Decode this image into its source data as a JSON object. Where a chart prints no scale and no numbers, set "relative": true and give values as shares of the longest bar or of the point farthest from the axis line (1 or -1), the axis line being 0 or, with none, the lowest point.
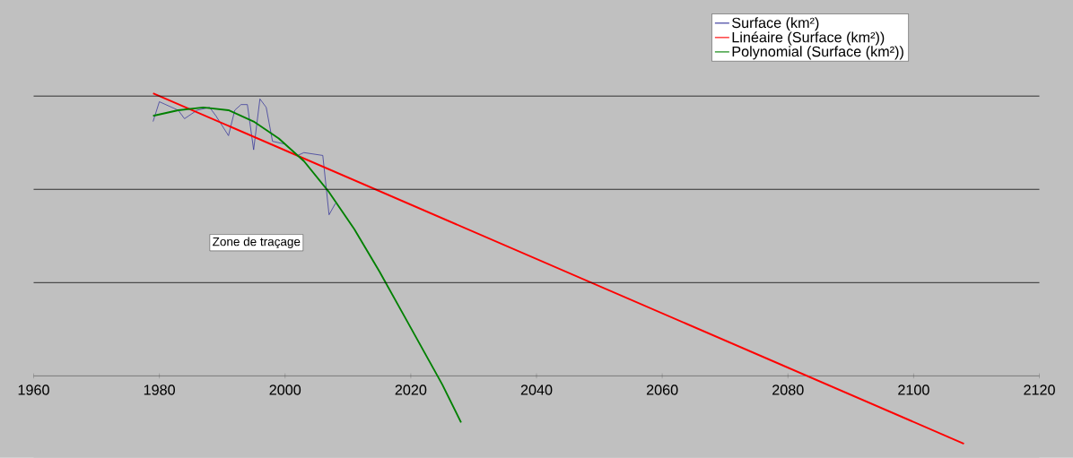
{
  "chart_data": {
    "type": "line",
    "relative": true,
    "xlim": [
      1960,
      2120
    ],
    "xticks": [
      1960,
      1980,
      2000,
      2020,
      2040,
      2060,
      2080,
      2100,
      2120
    ],
    "legend": "top right",
    "tick_labels": "x",
    "ref_lines": [
      {
        "axis": "y",
        "value": 0.33
      },
      {
        "axis": "y",
        "value": 0.66
      },
      {
        "axis": "y",
        "value": 0.99
      }
    ],
    "series": [
      {
        "name": "Surface (km²)",
        "color": "#333399",
        "x": [
          1979,
          1980,
          1983,
          1984,
          1986,
          1988,
          1989,
          1991,
          1992,
          1993,
          1994,
          1995,
          1996,
          1997,
          1998,
          2000,
          2002,
          2003,
          2006,
          2007,
          2008
        ],
        "values": [
          0.9,
          0.97,
          0.94,
          0.91,
          0.94,
          0.95,
          0.92,
          0.85,
          0.94,
          0.96,
          0.96,
          0.8,
          0.98,
          0.95,
          0.83,
          0.82,
          0.78,
          0.79,
          0.78,
          0.57,
          0.61
        ]
      },
      {
        "name": "Linéaire (Surface (km²))",
        "color": "#ff0000",
        "x": [
          1979,
          2108
        ],
        "values": [
          1.0,
          -0.24
        ]
      },
      {
        "name": "Polynomial (Surface (km²))",
        "color": "#008000",
        "x": [
          1979,
          1983,
          1987,
          1991,
          1995,
          1999,
          2003,
          2007,
          2011,
          2015,
          2019,
          2023,
          2025,
          2028
        ],
        "values": [
          0.92,
          0.94,
          0.95,
          0.94,
          0.9,
          0.84,
          0.76,
          0.65,
          0.52,
          0.37,
          0.21,
          0.05,
          -0.03,
          -0.165
        ]
      }
    ],
    "annotations": [
      "Zone de traçage"
    ]
  }
}
